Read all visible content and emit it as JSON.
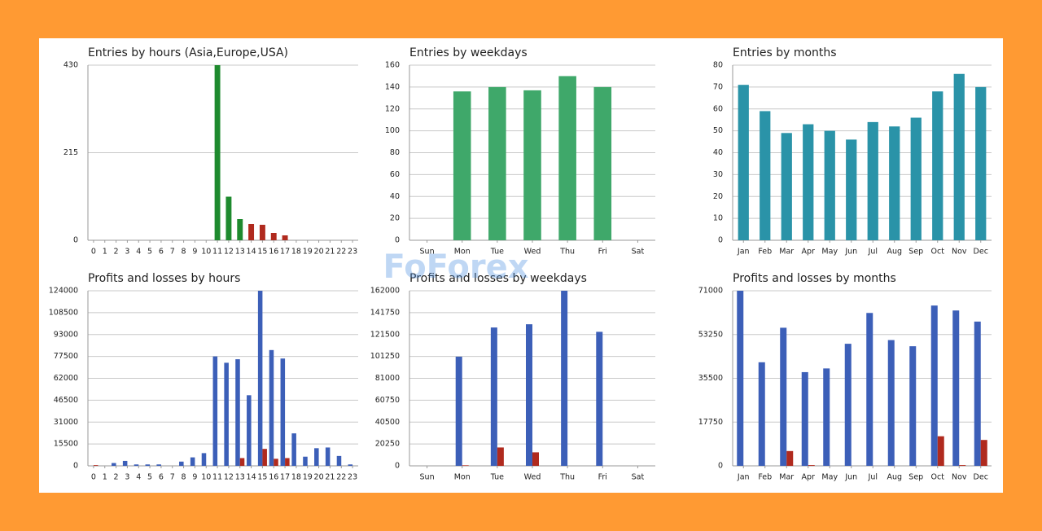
{
  "chart_data": [
    {
      "type": "bar",
      "title": "Entries by hours (Asia,Europe,USA)",
      "categories": [
        "0",
        "1",
        "2",
        "3",
        "4",
        "5",
        "6",
        "7",
        "8",
        "9",
        "10",
        "11",
        "12",
        "13",
        "14",
        "15",
        "16",
        "17",
        "18",
        "19",
        "20",
        "21",
        "22",
        "23"
      ],
      "values": [
        0,
        0,
        0,
        0,
        0,
        0,
        0,
        0,
        0,
        0,
        0,
        430,
        107,
        52,
        40,
        38,
        18,
        12,
        0,
        0,
        0,
        0,
        0,
        0
      ],
      "colors": [
        "#1e8a2e",
        "#1e8a2e",
        "#1e8a2e",
        "#1e8a2e",
        "#1e8a2e",
        "#1e8a2e",
        "#1e8a2e",
        "#1e8a2e",
        "#1e8a2e",
        "#1e8a2e",
        "#1e8a2e",
        "#1e8a2e",
        "#1e8a2e",
        "#1e8a2e",
        "#b02a1e",
        "#b02a1e",
        "#b02a1e",
        "#b02a1e",
        "#b02a1e",
        "#b02a1e",
        "#b02a1e",
        "#b02a1e",
        "#b02a1e",
        "#b02a1e"
      ],
      "ylim": [
        0,
        430
      ],
      "yticks": [
        0,
        215,
        430
      ],
      "grid": true
    },
    {
      "type": "bar",
      "title": "Entries by weekdays",
      "categories": [
        "Sun",
        "Mon",
        "Tue",
        "Wed",
        "Thu",
        "Fri",
        "Sat"
      ],
      "values": [
        0,
        136,
        140,
        137,
        150,
        140,
        0
      ],
      "color": "#3fa86a",
      "ylim": [
        0,
        160
      ],
      "yticks": [
        0,
        20,
        40,
        60,
        80,
        100,
        120,
        140,
        160
      ],
      "grid": true
    },
    {
      "type": "bar",
      "title": "Entries by months",
      "categories": [
        "Jan",
        "Feb",
        "Mar",
        "Apr",
        "May",
        "Jun",
        "Jul",
        "Aug",
        "Sep",
        "Oct",
        "Nov",
        "Dec"
      ],
      "values": [
        71,
        59,
        49,
        53,
        50,
        46,
        54,
        52,
        56,
        68,
        76,
        70
      ],
      "color": "#2a93a8",
      "ylim": [
        0,
        80
      ],
      "yticks": [
        0,
        10,
        20,
        30,
        40,
        50,
        60,
        70,
        80
      ],
      "grid": true
    },
    {
      "type": "bar",
      "title": "Profits and losses by hours",
      "categories": [
        "0",
        "1",
        "2",
        "3",
        "4",
        "5",
        "6",
        "7",
        "8",
        "9",
        "10",
        "11",
        "12",
        "13",
        "14",
        "15",
        "16",
        "17",
        "18",
        "19",
        "20",
        "21",
        "22",
        "23"
      ],
      "series": [
        {
          "color": "#3c5fb8",
          "values": [
            0,
            0,
            2000,
            3500,
            1000,
            1000,
            1000,
            0,
            3000,
            6000,
            9000,
            77500,
            73000,
            75500,
            50000,
            124000,
            82000,
            76000,
            23000,
            6500,
            12500,
            13000,
            7000,
            1000
          ]
        },
        {
          "color": "#b02a1e",
          "values": [
            500,
            0,
            0,
            0,
            0,
            0,
            0,
            0,
            0,
            0,
            0,
            0,
            0,
            5500,
            0,
            12000,
            5000,
            5500,
            0,
            0,
            0,
            0,
            0,
            0
          ]
        }
      ],
      "ylim": [
        0,
        124000
      ],
      "yticks": [
        0,
        15500,
        31000,
        46500,
        62000,
        77500,
        93000,
        108500,
        124000
      ],
      "grid": true
    },
    {
      "type": "bar",
      "title": "Profits and losses by weekdays",
      "categories": [
        "Sun",
        "Mon",
        "Tue",
        "Wed",
        "Thu",
        "Fri",
        "Sat"
      ],
      "series": [
        {
          "color": "#3c5fb8",
          "values": [
            0,
            101000,
            128000,
            131000,
            162000,
            124000,
            0
          ]
        },
        {
          "color": "#b02a1e",
          "values": [
            0,
            500,
            17000,
            12500,
            0,
            0,
            0
          ]
        }
      ],
      "ylim": [
        0,
        162000
      ],
      "yticks": [
        0,
        20250,
        40500,
        60750,
        81000,
        101250,
        121500,
        141750,
        162000
      ],
      "grid": true
    },
    {
      "type": "bar",
      "title": "Profits and losses by months",
      "categories": [
        "Jan",
        "Feb",
        "Mar",
        "Apr",
        "May",
        "Jun",
        "Jul",
        "Aug",
        "Sep",
        "Oct",
        "Nov",
        "Dec"
      ],
      "series": [
        {
          "color": "#3c5fb8",
          "values": [
            71000,
            42000,
            56000,
            38000,
            39500,
            49500,
            62000,
            51000,
            48500,
            65000,
            63000,
            58500
          ]
        },
        {
          "color": "#b02a1e",
          "values": [
            0,
            0,
            6000,
            300,
            0,
            0,
            0,
            0,
            0,
            12000,
            300,
            10500
          ]
        }
      ],
      "ylim": [
        0,
        71000
      ],
      "yticks": [
        0,
        17750,
        35500,
        53250,
        71000
      ],
      "grid": true
    }
  ],
  "watermark": "FoForex"
}
